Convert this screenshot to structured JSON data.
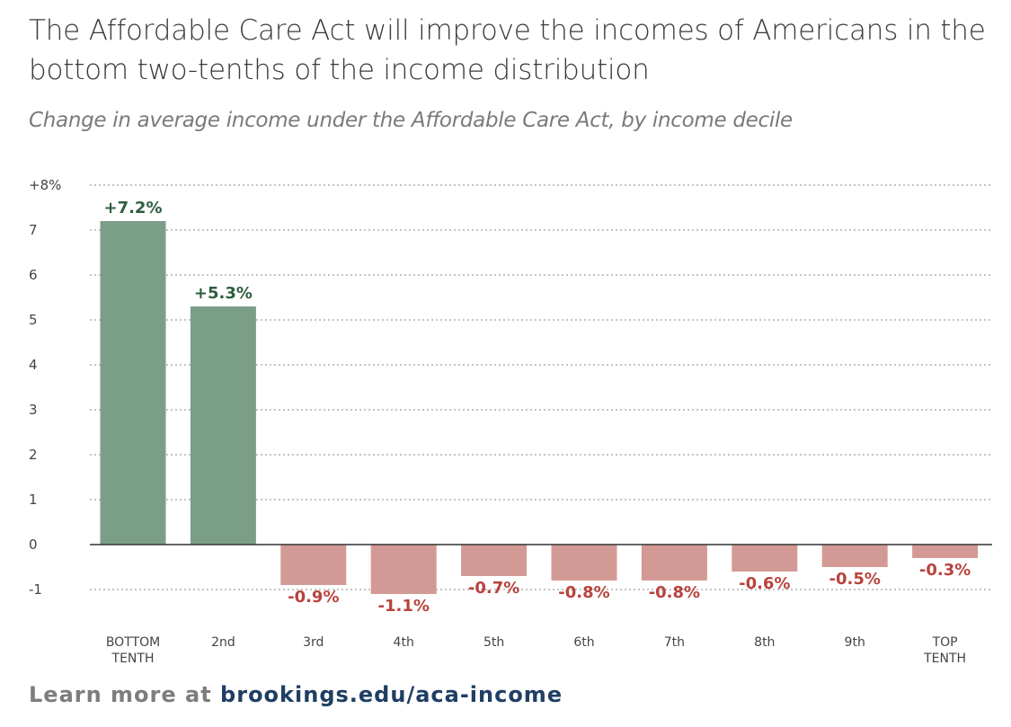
{
  "title": "The Affordable Care Act will improve the incomes of Americans in the bottom two-tenths of the income distribution",
  "subtitle": "Change in average income under the Affordable Care Act, by income decile",
  "footer": {
    "lead": "Learn more at",
    "link": "brookings.edu/aca-income"
  },
  "colors": {
    "positive_bar": "#7b9e89",
    "negative_bar": "#d39a95",
    "positive_label": "#2f5e3e",
    "negative_label": "#b8433d",
    "axis_text": "#444444",
    "grid": "#8a8a8a"
  },
  "chart_data": {
    "type": "bar",
    "title": "The Affordable Care Act will improve the incomes of Americans in the bottom two-tenths of the income distribution",
    "subtitle": "Change in average income under the Affordable Care Act, by income decile",
    "categories": [
      [
        "BOTTOM",
        "TENTH"
      ],
      [
        "2nd"
      ],
      [
        "3rd"
      ],
      [
        "4th"
      ],
      [
        "5th"
      ],
      [
        "6th"
      ],
      [
        "7th"
      ],
      [
        "8th"
      ],
      [
        "9th"
      ],
      [
        "TOP",
        "TENTH"
      ]
    ],
    "values": [
      7.2,
      5.3,
      -0.9,
      -1.1,
      -0.7,
      -0.8,
      -0.8,
      -0.6,
      -0.5,
      -0.3
    ],
    "value_labels": [
      "+7.2%",
      "+5.3%",
      "-0.9%",
      "-1.1%",
      "-0.7%",
      "-0.8%",
      "-0.8%",
      "-0.6%",
      "-0.5%",
      "-0.3%"
    ],
    "y_ticks": [
      8,
      7,
      6,
      5,
      4,
      3,
      2,
      1,
      0,
      -1
    ],
    "y_tick_labels": [
      "+8%",
      "7",
      "6",
      "5",
      "4",
      "3",
      "2",
      "1",
      "0",
      "-1"
    ],
    "ylim": [
      -1,
      8
    ],
    "xlabel": "",
    "ylabel": "",
    "grid": true
  }
}
